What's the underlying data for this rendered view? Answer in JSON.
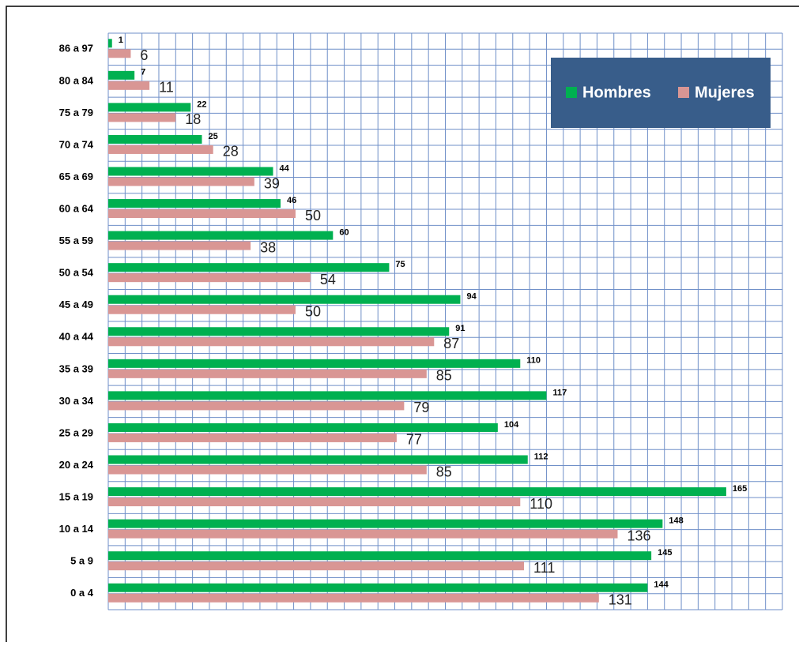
{
  "chart_data": {
    "type": "barh",
    "categories": [
      "86 a 97",
      "80 a 84",
      "75 a 79",
      "70 a 74",
      "65 a 69",
      "60 a 64",
      "55 a 59",
      "50 a 54",
      "45 a 49",
      "40 a 44",
      "35 a 39",
      "30 a 34",
      "25 a 29",
      "20 a 24",
      "15 a 19",
      "10 a 14",
      "5 a 9",
      "0 a 4"
    ],
    "series": [
      {
        "name": "Hombres",
        "color": "#00b050",
        "values": [
          1,
          7,
          22,
          25,
          44,
          46,
          60,
          75,
          94,
          91,
          110,
          117,
          104,
          112,
          165,
          148,
          145,
          144
        ]
      },
      {
        "name": "Mujeres",
        "color": "#d99694",
        "values": [
          6,
          11,
          18,
          28,
          39,
          50,
          38,
          54,
          50,
          87,
          85,
          79,
          77,
          85,
          110,
          136,
          111,
          131
        ]
      }
    ],
    "xlim": [
      0,
      180
    ],
    "grid": true,
    "legend": "upper right"
  }
}
